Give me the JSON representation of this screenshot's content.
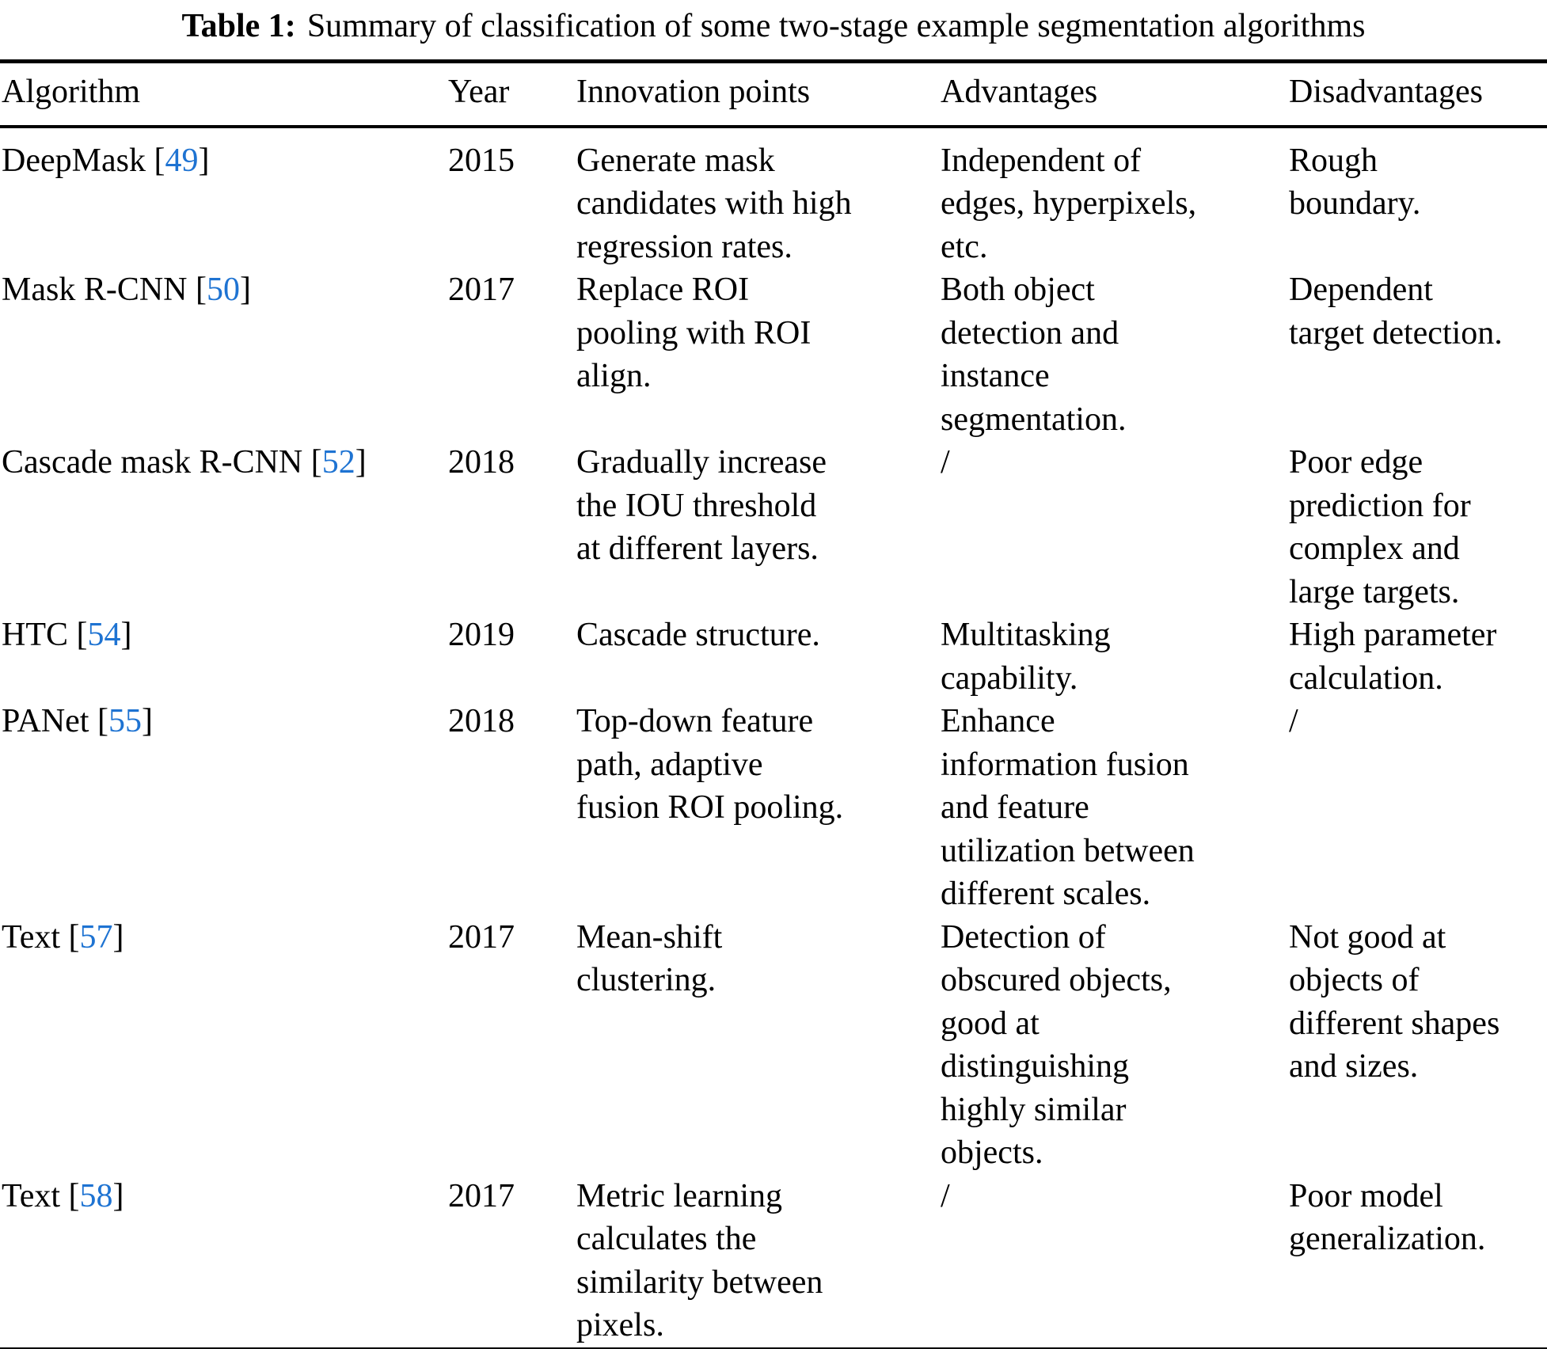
{
  "caption": {
    "label": "Table 1:",
    "text": "Summary of classification of some two-stage example segmentation algorithms"
  },
  "columns": [
    "Algorithm",
    "Year",
    "Innovation points",
    "Advantages",
    "Disadvantages"
  ],
  "colors": {
    "citation_link": "#1e73d2",
    "text": "#000000",
    "background": "#ffffff",
    "rule": "#000000"
  },
  "rows": [
    {
      "algorithm": {
        "prefix": "DeepMask [",
        "ref": "49",
        "suffix": "]"
      },
      "year": "2015",
      "innovation": [
        "Generate mask",
        "candidates with high",
        "regression rates."
      ],
      "advantages": [
        "Independent of",
        "edges, hyperpixels,",
        "etc."
      ],
      "disadvantages": [
        "Rough",
        "boundary."
      ]
    },
    {
      "algorithm": {
        "prefix": "Mask R-CNN [",
        "ref": "50",
        "suffix": "]"
      },
      "year": "2017",
      "innovation": [
        "Replace ROI",
        "pooling with ROI",
        "align."
      ],
      "advantages": [
        "Both object",
        "detection and",
        "instance",
        "segmentation."
      ],
      "disadvantages": [
        "Dependent",
        "target detection."
      ]
    },
    {
      "algorithm": {
        "prefix": "Cascade mask R-CNN [",
        "ref": "52",
        "suffix": "]"
      },
      "year": "2018",
      "innovation": [
        "Gradually increase",
        "the IOU threshold",
        "at different layers."
      ],
      "advantages": [
        "/"
      ],
      "disadvantages": [
        "Poor edge",
        "prediction for",
        "complex and",
        "large targets."
      ]
    },
    {
      "algorithm": {
        "prefix": "HTC [",
        "ref": "54",
        "suffix": "]"
      },
      "year": "2019",
      "innovation": [
        "Cascade structure."
      ],
      "advantages": [
        "Multitasking",
        "capability."
      ],
      "disadvantages": [
        "High parameter",
        "calculation."
      ]
    },
    {
      "algorithm": {
        "prefix": "PANet [",
        "ref": "55",
        "suffix": "]"
      },
      "year": "2018",
      "innovation": [
        "Top-down feature",
        "path, adaptive",
        "fusion ROI pooling."
      ],
      "advantages": [
        "Enhance",
        "information fusion",
        "and feature",
        "utilization between",
        "different scales."
      ],
      "disadvantages": [
        "/"
      ]
    },
    {
      "algorithm": {
        "prefix": "Text [",
        "ref": "57",
        "suffix": "]"
      },
      "year": "2017",
      "innovation": [
        "Mean-shift",
        "clustering."
      ],
      "advantages": [
        "Detection of",
        "obscured objects,",
        "good at",
        "distinguishing",
        "highly similar",
        "objects."
      ],
      "disadvantages": [
        "Not good at",
        "objects of",
        "different shapes",
        "and sizes."
      ]
    },
    {
      "algorithm": {
        "prefix": "Text [",
        "ref": "58",
        "suffix": "]"
      },
      "year": "2017",
      "innovation": [
        "Metric learning",
        "calculates the",
        "similarity between",
        "pixels."
      ],
      "advantages": [
        "/"
      ],
      "disadvantages": [
        "Poor model",
        "generalization."
      ]
    }
  ]
}
